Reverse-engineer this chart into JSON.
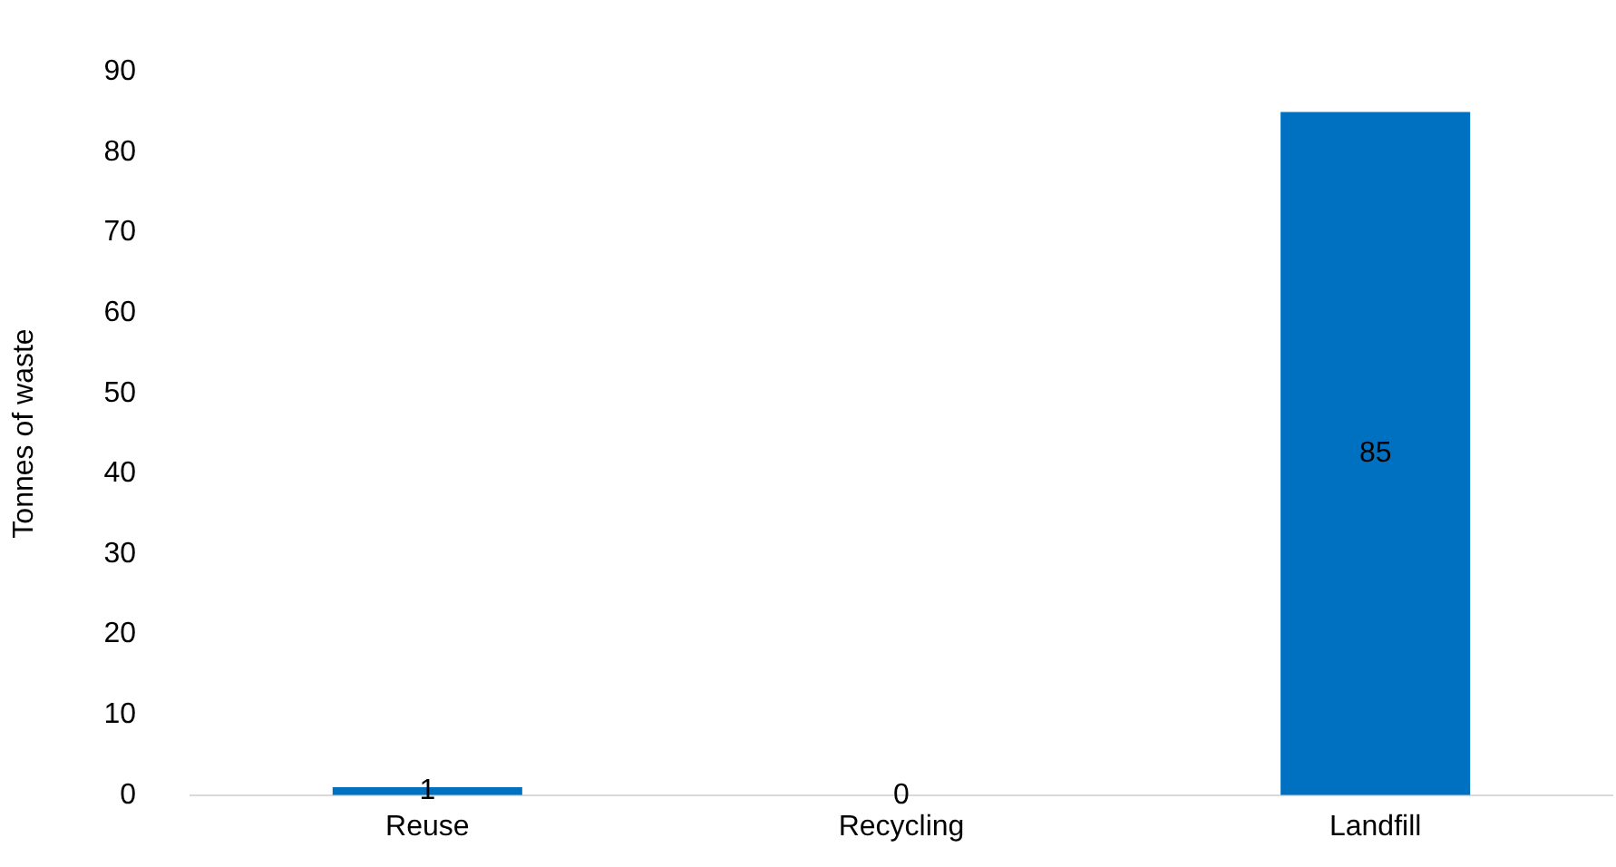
{
  "chart_data": {
    "type": "bar",
    "ylabel": "Tonnes of waste",
    "categories": [
      "Reuse",
      "Recycling",
      "Landfill"
    ],
    "values": [
      1,
      0,
      85
    ],
    "color": "#0070c0",
    "ylim": [
      0,
      90
    ],
    "yticks": [
      0,
      10,
      20,
      30,
      40,
      50,
      60,
      70,
      80,
      90
    ],
    "grid": false,
    "legend": false,
    "data_labels": true
  }
}
